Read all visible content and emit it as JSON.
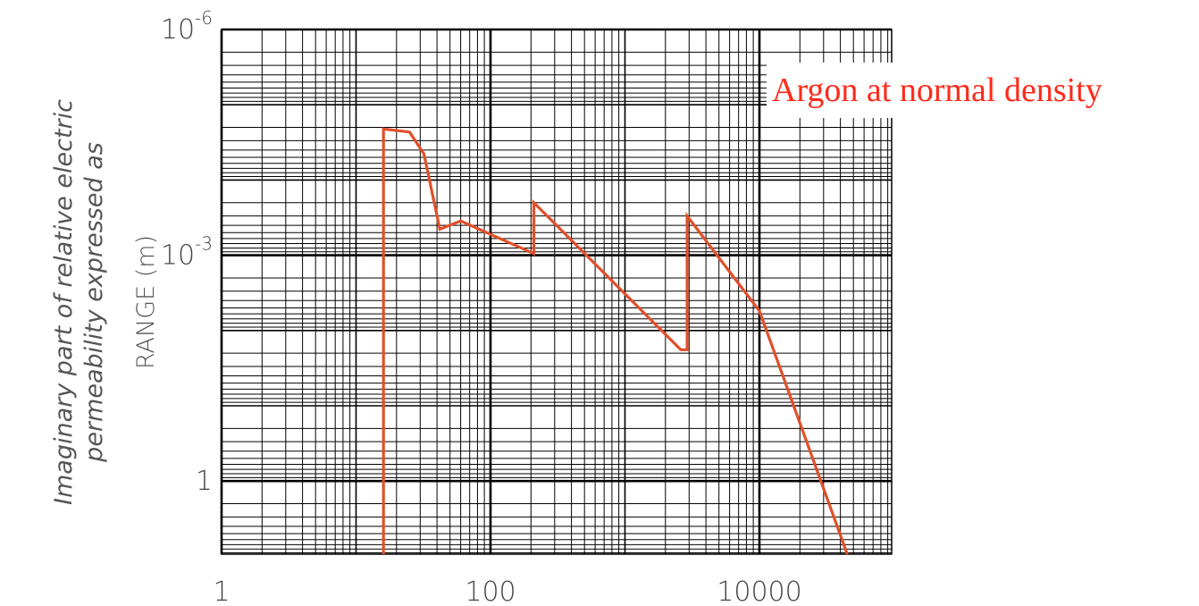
{
  "chart_data": {
    "type": "line",
    "y_axis_title": {
      "line1": "Imaginary part of relative electric",
      "line2": "permeability expressed as",
      "line3": "RANGE (m)"
    },
    "x_scale": "log",
    "y_scale": "log",
    "y_direction": "decreasing (10^-6 at top, 1 at bottom)",
    "xlim": [
      1,
      50000
    ],
    "ylim": [
      1e-06,
      10
    ],
    "x_ticks": [
      {
        "value": 1,
        "label": "1"
      },
      {
        "value": 100,
        "label": "100"
      },
      {
        "value": 10000,
        "label": "10000"
      }
    ],
    "y_ticks": [
      {
        "value": 1e-06,
        "base": "10",
        "exp": "-6"
      },
      {
        "value": 0.001,
        "base": "10",
        "exp": "-3"
      },
      {
        "value": 1,
        "base": "1",
        "exp": ""
      }
    ],
    "grid": true,
    "annotation": "Argon at normal density",
    "series": [
      {
        "color": "#e0502a",
        "x": [
          16,
          16,
          25,
          32,
          42,
          60,
          130,
          210,
          210,
          2600,
          2900,
          2900,
          10000,
          45000
        ],
        "y": [
          10,
          2.1e-05,
          2.3e-05,
          4.5e-05,
          0.00045,
          0.00035,
          0.00065,
          0.00095,
          0.0002,
          0.018,
          0.018,
          0.0003,
          0.0055,
          10
        ]
      }
    ],
    "colors": {
      "series": "#e0502a",
      "annotation": "#ff2a1a",
      "grid": "#000000"
    }
  }
}
